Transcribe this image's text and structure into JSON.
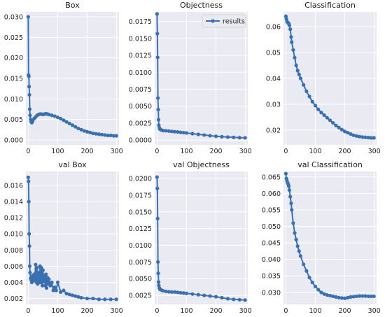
{
  "colors": {
    "panel_bg": "#eaeaf2",
    "grid": "#ffffff",
    "series": "#3a6fb0"
  },
  "chart_data": [
    {
      "type": "line",
      "title": "Box",
      "xlim": [
        -8,
        308
      ],
      "ylim": [
        -0.0012,
        0.0312
      ],
      "xticks": [
        0,
        100,
        200,
        300
      ],
      "xtick_labels": [
        "0",
        "100",
        "200",
        "300"
      ],
      "yticks": [
        0,
        0.005,
        0.01,
        0.015,
        0.02,
        0.025,
        0.03
      ],
      "ytick_labels": [
        "0.000",
        "0.005",
        "0.010",
        "0.015",
        "0.020",
        "0.025",
        "0.030"
      ],
      "grid": true,
      "legend": null,
      "series": [
        {
          "name": "results",
          "x": [
            0,
            1,
            2,
            3,
            4,
            5,
            6,
            8,
            10,
            12,
            15,
            20,
            25,
            30,
            35,
            40,
            45,
            50,
            55,
            60,
            65,
            70,
            80,
            90,
            100,
            110,
            120,
            130,
            140,
            150,
            160,
            170,
            180,
            190,
            200,
            210,
            220,
            230,
            240,
            250,
            260,
            270,
            280,
            290,
            299
          ],
          "y": [
            0.03,
            0.0158,
            0.0155,
            0.013,
            0.011,
            0.0075,
            0.006,
            0.005,
            0.0044,
            0.0042,
            0.0046,
            0.0052,
            0.0056,
            0.006,
            0.0062,
            0.0063,
            0.0063,
            0.0062,
            0.0063,
            0.0064,
            0.0063,
            0.0062,
            0.006,
            0.0058,
            0.0055,
            0.0052,
            0.0048,
            0.0044,
            0.004,
            0.0036,
            0.0032,
            0.0028,
            0.0025,
            0.0022,
            0.002,
            0.0018,
            0.0016,
            0.0015,
            0.0014,
            0.0013,
            0.0012,
            0.0011,
            0.0011,
            0.001,
            0.001
          ]
        }
      ]
    },
    {
      "type": "line",
      "title": "Objectness",
      "xlim": [
        -8,
        308
      ],
      "ylim": [
        -0.0007,
        0.0189
      ],
      "xticks": [
        0,
        100,
        200,
        300
      ],
      "xtick_labels": [
        "0",
        "100",
        "200",
        "300"
      ],
      "yticks": [
        0,
        0.0025,
        0.005,
        0.0075,
        0.01,
        0.0125,
        0.015,
        0.0175
      ],
      "ytick_labels": [
        "0.0000",
        "0.0025",
        "0.0050",
        "0.0075",
        "0.0100",
        "0.0125",
        "0.0150",
        "0.0175"
      ],
      "grid": true,
      "legend": "top-right",
      "legend_labels": [
        "results"
      ],
      "series": [
        {
          "name": "results",
          "x": [
            0,
            1,
            2,
            3,
            4,
            5,
            6,
            8,
            10,
            15,
            20,
            30,
            40,
            50,
            60,
            70,
            80,
            90,
            100,
            120,
            140,
            160,
            180,
            200,
            220,
            240,
            260,
            280,
            299
          ],
          "y": [
            0.0186,
            0.0157,
            0.0122,
            0.0062,
            0.0045,
            0.003,
            0.0022,
            0.0018,
            0.0016,
            0.0015,
            0.0014,
            0.00138,
            0.00133,
            0.00128,
            0.00124,
            0.0012,
            0.00115,
            0.0011,
            0.00105,
            0.00095,
            0.00085,
            0.00075,
            0.00065,
            0.00057,
            0.0005,
            0.00045,
            0.0004,
            0.00036,
            0.00034
          ]
        }
      ]
    },
    {
      "type": "line",
      "title": "Classification",
      "xlim": [
        -8,
        308
      ],
      "ylim": [
        0.0143,
        0.0657
      ],
      "xticks": [
        0,
        100,
        200,
        300
      ],
      "xtick_labels": [
        "0",
        "100",
        "200",
        "300"
      ],
      "yticks": [
        0.02,
        0.03,
        0.04,
        0.05,
        0.06
      ],
      "ytick_labels": [
        "0.02",
        "0.03",
        "0.04",
        "0.05",
        "0.06"
      ],
      "grid": true,
      "legend": null,
      "series": [
        {
          "name": "results",
          "x": [
            0,
            2,
            4,
            6,
            8,
            10,
            12,
            15,
            18,
            20,
            25,
            30,
            35,
            40,
            45,
            50,
            60,
            70,
            80,
            90,
            100,
            110,
            120,
            130,
            140,
            150,
            160,
            170,
            180,
            190,
            200,
            210,
            220,
            230,
            240,
            250,
            260,
            270,
            280,
            290,
            299
          ],
          "y": [
            0.064,
            0.063,
            0.062,
            0.0616,
            0.0614,
            0.0612,
            0.0605,
            0.059,
            0.056,
            0.054,
            0.051,
            0.048,
            0.045,
            0.043,
            0.0415,
            0.04,
            0.0375,
            0.035,
            0.033,
            0.031,
            0.0295,
            0.028,
            0.0268,
            0.0258,
            0.0248,
            0.0238,
            0.0228,
            0.0218,
            0.021,
            0.0202,
            0.0195,
            0.019,
            0.0185,
            0.018,
            0.0177,
            0.0175,
            0.0173,
            0.0172,
            0.0171,
            0.017,
            0.017
          ]
        }
      ]
    },
    {
      "type": "line",
      "title": "val Box",
      "xlim": [
        -8,
        308
      ],
      "ylim": [
        0.00127,
        0.01773
      ],
      "xticks": [
        0,
        100,
        200,
        300
      ],
      "xtick_labels": [
        "0",
        "100",
        "200",
        "300"
      ],
      "yticks": [
        0.002,
        0.004,
        0.006,
        0.008,
        0.01,
        0.012,
        0.014,
        0.016
      ],
      "ytick_labels": [
        "0.002",
        "0.004",
        "0.006",
        "0.008",
        "0.010",
        "0.012",
        "0.014",
        "0.016"
      ],
      "grid": true,
      "legend": null,
      "series": [
        {
          "name": "results",
          "x": [
            0,
            1,
            2,
            3,
            4,
            5,
            6,
            8,
            10,
            12,
            15,
            18,
            20,
            22,
            25,
            28,
            30,
            32,
            35,
            38,
            40,
            42,
            45,
            48,
            50,
            52,
            55,
            58,
            60,
            62,
            65,
            68,
            70,
            75,
            80,
            85,
            90,
            95,
            100,
            110,
            120,
            130,
            140,
            150,
            160,
            170,
            180,
            200,
            220,
            240,
            260,
            280,
            299
          ],
          "y": [
            0.017,
            0.0165,
            0.014,
            0.01,
            0.0085,
            0.006,
            0.0052,
            0.0045,
            0.0043,
            0.004,
            0.0048,
            0.0042,
            0.005,
            0.0044,
            0.0062,
            0.004,
            0.0058,
            0.0038,
            0.0052,
            0.004,
            0.006,
            0.004,
            0.0058,
            0.0036,
            0.0055,
            0.0041,
            0.0048,
            0.0036,
            0.005,
            0.0033,
            0.0046,
            0.0038,
            0.0044,
            0.0036,
            0.004,
            0.003,
            0.0034,
            0.003,
            0.004,
            0.0028,
            0.003,
            0.0026,
            0.0025,
            0.0024,
            0.0023,
            0.0022,
            0.0021,
            0.002,
            0.002,
            0.0019,
            0.0019,
            0.0019,
            0.0019
          ]
        }
      ]
    },
    {
      "type": "line",
      "title": "val Objectness",
      "xlim": [
        -8,
        308
      ],
      "ylim": [
        0.00115,
        0.02105
      ],
      "xticks": [
        0,
        100,
        200,
        300
      ],
      "xtick_labels": [
        "0",
        "100",
        "200",
        "300"
      ],
      "yticks": [
        0.0025,
        0.005,
        0.0075,
        0.01,
        0.0125,
        0.015,
        0.0175,
        0.02
      ],
      "ytick_labels": [
        "0.0025",
        "0.0050",
        "0.0075",
        "0.0100",
        "0.0125",
        "0.0150",
        "0.0175",
        "0.0200"
      ],
      "grid": true,
      "legend": null,
      "series": [
        {
          "name": "results",
          "x": [
            0,
            1,
            2,
            3,
            4,
            5,
            6,
            8,
            10,
            15,
            20,
            30,
            40,
            50,
            60,
            70,
            80,
            90,
            100,
            120,
            140,
            160,
            180,
            200,
            220,
            240,
            260,
            280,
            299
          ],
          "y": [
            0.0202,
            0.0185,
            0.014,
            0.0075,
            0.0058,
            0.0045,
            0.004,
            0.0036,
            0.0034,
            0.0033,
            0.0032,
            0.0031,
            0.00305,
            0.003,
            0.003,
            0.00295,
            0.0029,
            0.00285,
            0.0028,
            0.0027,
            0.0026,
            0.0025,
            0.0024,
            0.0023,
            0.00215,
            0.002,
            0.0019,
            0.00185,
            0.0018
          ]
        }
      ]
    },
    {
      "type": "line",
      "title": "val Classification",
      "xlim": [
        -8,
        308
      ],
      "ylim": [
        0.02635,
        0.06665
      ],
      "xticks": [
        0,
        100,
        200,
        300
      ],
      "xtick_labels": [
        "0",
        "100",
        "200",
        "300"
      ],
      "yticks": [
        0.03,
        0.035,
        0.04,
        0.045,
        0.05,
        0.055,
        0.06,
        0.065
      ],
      "ytick_labels": [
        "0.030",
        "0.035",
        "0.040",
        "0.045",
        "0.050",
        "0.055",
        "0.060",
        "0.065"
      ],
      "grid": true,
      "legend": null,
      "series": [
        {
          "name": "results",
          "x": [
            0,
            2,
            4,
            6,
            8,
            10,
            12,
            15,
            18,
            20,
            25,
            30,
            35,
            40,
            45,
            50,
            60,
            70,
            80,
            90,
            100,
            110,
            120,
            130,
            140,
            150,
            160,
            170,
            180,
            190,
            200,
            210,
            220,
            230,
            240,
            250,
            260,
            270,
            280,
            290,
            299
          ],
          "y": [
            0.066,
            0.0645,
            0.0638,
            0.0632,
            0.0628,
            0.0622,
            0.061,
            0.059,
            0.057,
            0.055,
            0.051,
            0.048,
            0.046,
            0.044,
            0.0425,
            0.041,
            0.0385,
            0.0365,
            0.0345,
            0.033,
            0.0318,
            0.0308,
            0.03,
            0.0295,
            0.0292,
            0.029,
            0.0288,
            0.0286,
            0.0284,
            0.0283,
            0.0282,
            0.0284,
            0.0286,
            0.0287,
            0.0288,
            0.0289,
            0.0289,
            0.0289,
            0.0288,
            0.0288,
            0.0288
          ]
        }
      ]
    }
  ]
}
